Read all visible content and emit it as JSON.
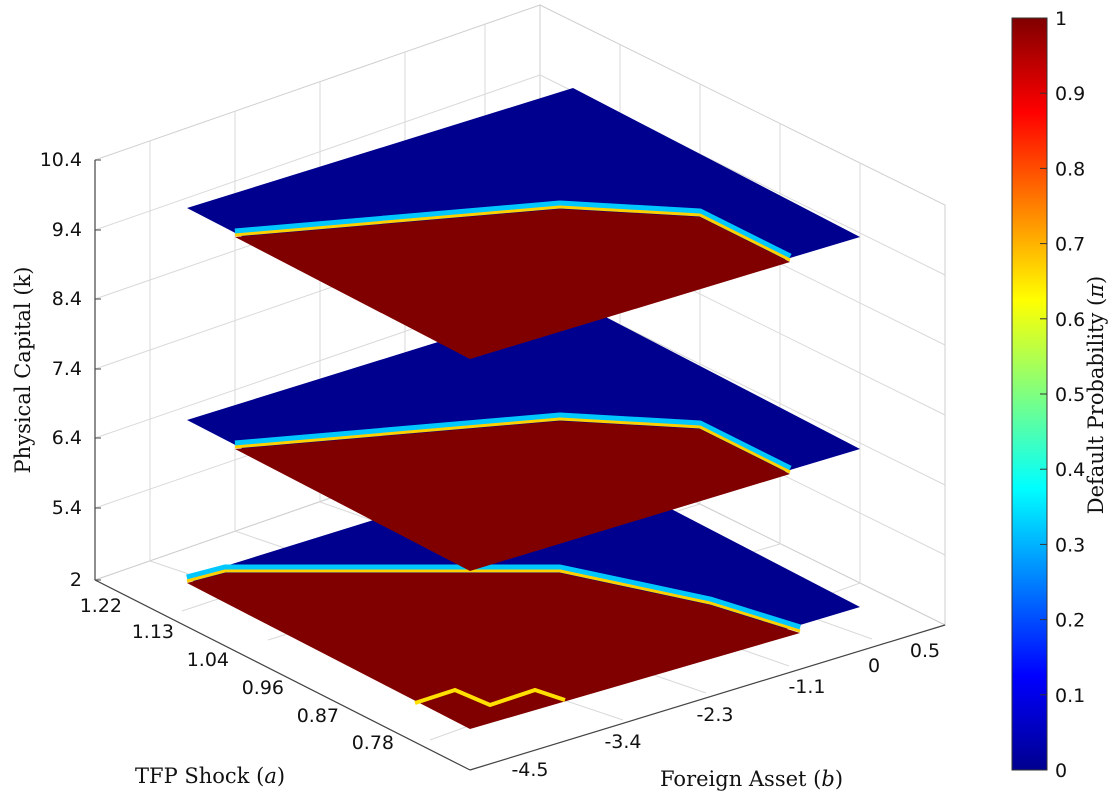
{
  "chart_data": {
    "type": "heatmap",
    "title": "",
    "xlabel": "Foreign Asset",
    "xlabel_symbol": "b",
    "ylabel": "TFP Shock",
    "ylabel_symbol": "a",
    "zlabel": "Physical Capital (k)",
    "colorbar_label": "Default Probability",
    "colorbar_symbol": "π",
    "colormap": "jet",
    "x_ticks": [
      "-4.5",
      "-3.4",
      "-2.3",
      "-1.1",
      "0",
      "0.5"
    ],
    "y_ticks": [
      "0.78",
      "0.87",
      "0.96",
      "1.04",
      "1.13",
      "1.22"
    ],
    "z_ticks": [
      "2",
      "5.4",
      "6.4",
      "7.4",
      "8.4",
      "9.4",
      "10.4"
    ],
    "colorbar_ticks": [
      "0",
      "0.1",
      "0.2",
      "0.3",
      "0.4",
      "0.5",
      "0.6",
      "0.7",
      "0.8",
      "0.9",
      "1"
    ],
    "colorbar_range": [
      0,
      1
    ],
    "grid": true,
    "slices": [
      {
        "k": 2,
        "description": "default region covers most of the surface"
      },
      {
        "k": 6.4,
        "description": "default region on lower asset side"
      },
      {
        "k": 9.4,
        "description": "default region on lower asset side"
      }
    ]
  },
  "colors": {
    "no_default": "#00008f",
    "default": "#800000",
    "grid": "#d9d9d9",
    "axis": "#444444"
  }
}
